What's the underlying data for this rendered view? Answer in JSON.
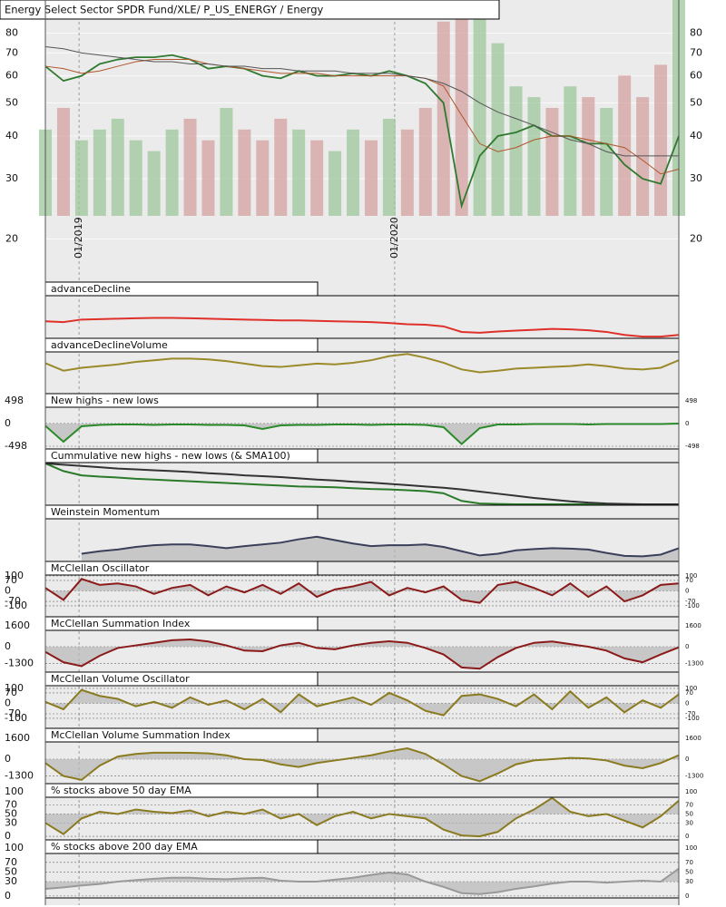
{
  "chart_data": [
    {
      "type": "line",
      "title": "Energy Select Sector SPDR Fund/XLE/ P_US_ENERGY / Energy",
      "log_y": true,
      "ylim": [
        16,
        100
      ],
      "yticks": [
        20,
        30,
        40,
        50,
        60,
        70,
        80
      ],
      "y2lim": [
        0,
        100
      ],
      "xticks": [
        {
          "value": 1.86,
          "label": "01/2019"
        },
        {
          "value": 19.3,
          "label": "01/2020"
        }
      ],
      "series": [
        {
          "type": "bar",
          "axis": "y2",
          "color": "#9cc79c",
          "values": [
            40,
            50,
            35,
            40,
            45,
            35,
            30,
            40,
            45,
            35,
            50,
            40,
            35,
            45,
            40,
            35,
            30,
            40,
            35,
            45,
            40,
            50,
            90,
            100,
            95,
            80,
            60,
            55,
            50,
            60,
            55,
            50,
            65,
            55,
            70,
            100
          ]
        },
        {
          "color": "#2f7a2f",
          "values": [
            64,
            58,
            60,
            65,
            67,
            68,
            68,
            69,
            67,
            63,
            64,
            63,
            60,
            59,
            62,
            60,
            60,
            61,
            60,
            62,
            60,
            57,
            50,
            25,
            35,
            40,
            41,
            43,
            40,
            40,
            38,
            38,
            33,
            30,
            29,
            40
          ]
        },
        {
          "color": "#b0552a",
          "values": [
            64,
            63,
            61,
            62,
            64,
            66,
            67,
            67,
            67,
            65,
            64,
            63,
            62,
            61,
            61,
            61,
            60,
            60,
            60,
            60,
            60,
            59,
            56,
            46,
            38,
            36,
            37,
            39,
            40,
            40,
            39,
            38,
            37,
            34,
            31,
            32
          ]
        },
        {
          "color": "#555555",
          "values": [
            73,
            72,
            70,
            69,
            68,
            67,
            66,
            66,
            65,
            65,
            64,
            64,
            63,
            63,
            62,
            62,
            62,
            61,
            61,
            61,
            60,
            59,
            57,
            54,
            50,
            47,
            45,
            43,
            41,
            39,
            38,
            36,
            35,
            35,
            35,
            35
          ]
        }
      ]
    },
    {
      "type": "line",
      "title": "advanceDecline",
      "ylim": [
        0,
        100
      ],
      "series": [
        {
          "color": "#e0302a",
          "values": [
            40,
            38,
            44,
            45,
            46,
            47,
            48,
            48,
            47,
            46,
            45,
            44,
            43,
            42,
            42,
            41,
            40,
            39,
            38,
            36,
            33,
            32,
            28,
            15,
            13,
            16,
            18,
            20,
            22,
            21,
            19,
            15,
            8,
            4,
            4,
            8
          ]
        }
      ]
    },
    {
      "type": "line",
      "title": "advanceDeclineVolume",
      "ylim": [
        0,
        100
      ],
      "series": [
        {
          "color": "#9a8a2a",
          "values": [
            73,
            55,
            62,
            66,
            70,
            76,
            80,
            84,
            84,
            82,
            78,
            72,
            66,
            64,
            68,
            72,
            70,
            74,
            80,
            90,
            95,
            86,
            74,
            58,
            51,
            55,
            60,
            62,
            64,
            66,
            70,
            66,
            60,
            58,
            62,
            80
          ]
        }
      ]
    },
    {
      "type": "line",
      "title": "New highs - new lows",
      "ylim": [
        -558,
        657
      ],
      "yticks": [
        498,
        0,
        -498
      ],
      "fill": true,
      "baseline": 0,
      "series": [
        {
          "color": "#2a8a2a",
          "values": [
            -50,
            -400,
            -60,
            -30,
            -20,
            -20,
            -30,
            -20,
            -20,
            -30,
            -30,
            -40,
            -120,
            -40,
            -30,
            -30,
            -20,
            -20,
            -30,
            -20,
            -20,
            -30,
            -80,
            -450,
            -100,
            -20,
            -20,
            -10,
            -10,
            -10,
            -20,
            -10,
            -10,
            -10,
            -10,
            0
          ]
        }
      ]
    },
    {
      "type": "line",
      "title": "Cummulative new highs - new lows (& SMA100)",
      "ylim": [
        0,
        100
      ],
      "series": [
        {
          "color": "#2a7a2a",
          "values": [
            98,
            80,
            70,
            67,
            65,
            62,
            60,
            58,
            56,
            54,
            52,
            50,
            48,
            46,
            44,
            43,
            42,
            40,
            38,
            37,
            35,
            33,
            28,
            10,
            4,
            3,
            2,
            2,
            2,
            2,
            2,
            2,
            2,
            2,
            2,
            2
          ]
        },
        {
          "color": "#333333",
          "values": [
            98,
            95,
            92,
            89,
            86,
            84,
            82,
            80,
            78,
            75,
            73,
            70,
            68,
            66,
            63,
            60,
            58,
            55,
            53,
            50,
            47,
            44,
            41,
            37,
            32,
            27,
            22,
            17,
            13,
            9,
            6,
            4,
            3,
            2,
            2,
            2
          ]
        }
      ]
    },
    {
      "type": "line",
      "title": "Weinstein Momentum",
      "ylim": [
        0,
        100
      ],
      "fill": true,
      "baseline": 0,
      "series": [
        {
          "color": "#3a3f5a",
          "values": [
            null,
            null,
            18,
            24,
            28,
            34,
            38,
            40,
            40,
            36,
            31,
            36,
            40,
            44,
            52,
            58,
            50,
            42,
            36,
            38,
            38,
            40,
            34,
            24,
            14,
            18,
            26,
            29,
            31,
            30,
            28,
            20,
            13,
            12,
            16,
            31
          ]
        }
      ]
    },
    {
      "type": "line",
      "title": "McClellan Oscillator",
      "ylim": [
        -173,
        197
      ],
      "yticks": [
        100,
        70,
        0,
        -70,
        -100
      ],
      "fill": true,
      "baseline": 0,
      "series": [
        {
          "color": "#8b1a1a",
          "values": [
            20,
            -60,
            80,
            40,
            50,
            30,
            -20,
            20,
            40,
            -30,
            30,
            -10,
            40,
            -20,
            50,
            -40,
            10,
            30,
            60,
            -30,
            20,
            -10,
            30,
            -60,
            -80,
            40,
            60,
            20,
            -30,
            50,
            -40,
            30,
            -70,
            -30,
            40,
            50
          ]
        }
      ]
    },
    {
      "type": "line",
      "title": "McClellan Summation Index",
      "ylim": [
        -1960,
        2310
      ],
      "yticks": [
        1600,
        0,
        -1300
      ],
      "fill": true,
      "baseline": 0,
      "series": [
        {
          "color": "#8b1a1a",
          "values": [
            -400,
            -1200,
            -1500,
            -700,
            -100,
            100,
            300,
            500,
            560,
            400,
            100,
            -300,
            -350,
            100,
            300,
            -100,
            -200,
            100,
            300,
            420,
            300,
            -100,
            -600,
            -1600,
            -1700,
            -800,
            -100,
            300,
            400,
            200,
            0,
            -300,
            -900,
            -1200,
            -600,
            -50
          ]
        }
      ]
    },
    {
      "type": "line",
      "title": "McClellan Volume Oscillator",
      "ylim": [
        -167,
        209
      ],
      "yticks": [
        100,
        70,
        0,
        -70,
        -100
      ],
      "fill": true,
      "baseline": 0,
      "series": [
        {
          "color": "#8a7a20",
          "values": [
            10,
            -40,
            90,
            50,
            30,
            -20,
            10,
            -30,
            40,
            -10,
            20,
            -40,
            30,
            -60,
            60,
            -20,
            10,
            40,
            -10,
            70,
            20,
            -50,
            -80,
            50,
            60,
            30,
            -20,
            60,
            -40,
            80,
            -30,
            40,
            -60,
            20,
            -30,
            60
          ]
        }
      ]
    },
    {
      "type": "line",
      "title": "McClellan Volume Summation Index",
      "ylim": [
        -1890,
        2380
      ],
      "yticks": [
        1600,
        0,
        -1300
      ],
      "fill": true,
      "baseline": 0,
      "series": [
        {
          "color": "#8a7a20",
          "values": [
            -300,
            -1300,
            -1600,
            -500,
            200,
            400,
            500,
            500,
            490,
            450,
            300,
            0,
            -70,
            -400,
            -600,
            -300,
            -100,
            100,
            300,
            600,
            840,
            400,
            -400,
            -1300,
            -1700,
            -1100,
            -400,
            -100,
            0,
            100,
            50,
            -100,
            -500,
            -700,
            -300,
            300
          ]
        }
      ]
    },
    {
      "type": "line",
      "title": "% stocks above 50 day EMA",
      "ylim": [
        -8,
        118
      ],
      "yticks": [
        100,
        70,
        50,
        30,
        0
      ],
      "fill": true,
      "baseline": 50,
      "series": [
        {
          "color": "#8a7a20",
          "values": [
            30,
            5,
            40,
            55,
            50,
            60,
            55,
            52,
            58,
            45,
            55,
            50,
            60,
            40,
            50,
            25,
            45,
            55,
            40,
            50,
            45,
            40,
            15,
            2,
            0,
            10,
            40,
            60,
            86,
            55,
            45,
            50,
            35,
            20,
            45,
            80
          ]
        }
      ]
    },
    {
      "type": "line",
      "title": "% stocks above 200 day EMA",
      "ylim": [
        -4,
        117
      ],
      "yticks": [
        100,
        70,
        50,
        30,
        0
      ],
      "fill": true,
      "baseline": 30,
      "series": [
        {
          "color": "#999999",
          "values": [
            15,
            18,
            22,
            25,
            30,
            33,
            36,
            38,
            38,
            36,
            35,
            37,
            38,
            32,
            30,
            30,
            34,
            38,
            44,
            49,
            45,
            30,
            19,
            6,
            4,
            8,
            15,
            20,
            26,
            30,
            30,
            28,
            30,
            32,
            30,
            57
          ]
        }
      ]
    }
  ]
}
